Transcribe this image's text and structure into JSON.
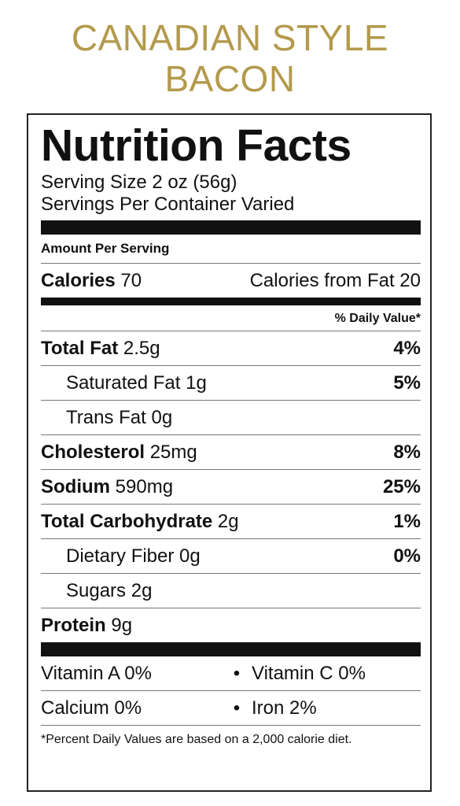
{
  "product": {
    "title_line1": "CANADIAN STYLE",
    "title_line2": "BACON"
  },
  "label": {
    "heading": "Nutrition Facts",
    "serving_size": "Serving Size 2 oz (56g)",
    "servings_per_container": "Servings Per Container Varied",
    "amount_per_serving": "Amount Per Serving",
    "calories_label": "Calories",
    "calories_value": "70",
    "calories_from_fat": "Calories from Fat 20",
    "daily_value_header": "% Daily Value*",
    "nutrients": [
      {
        "name": "Total Fat",
        "amount": "2.5g",
        "percent": "4%"
      },
      {
        "name": "Saturated Fat",
        "amount": "1g",
        "percent": "5%"
      },
      {
        "name": "Trans Fat",
        "amount": "0g",
        "percent": ""
      },
      {
        "name": "Cholesterol",
        "amount": "25mg",
        "percent": "8%"
      },
      {
        "name": "Sodium",
        "amount": "590mg",
        "percent": "25%"
      },
      {
        "name": "Total Carbohydrate",
        "amount": "2g",
        "percent": "1%"
      },
      {
        "name": "Dietary Fiber",
        "amount": "0g",
        "percent": "0%"
      },
      {
        "name": "Sugars",
        "amount": "2g",
        "percent": ""
      },
      {
        "name": "Protein",
        "amount": "9g",
        "percent": ""
      }
    ],
    "vitamins": [
      {
        "left": "Vitamin A 0%",
        "separator": "•",
        "right": "Vitamin C 0%"
      },
      {
        "left": "Calcium 0%",
        "separator": "•",
        "right": "Iron 2%"
      }
    ],
    "footnote": "*Percent Daily Values are based on a 2,000 calorie diet."
  }
}
